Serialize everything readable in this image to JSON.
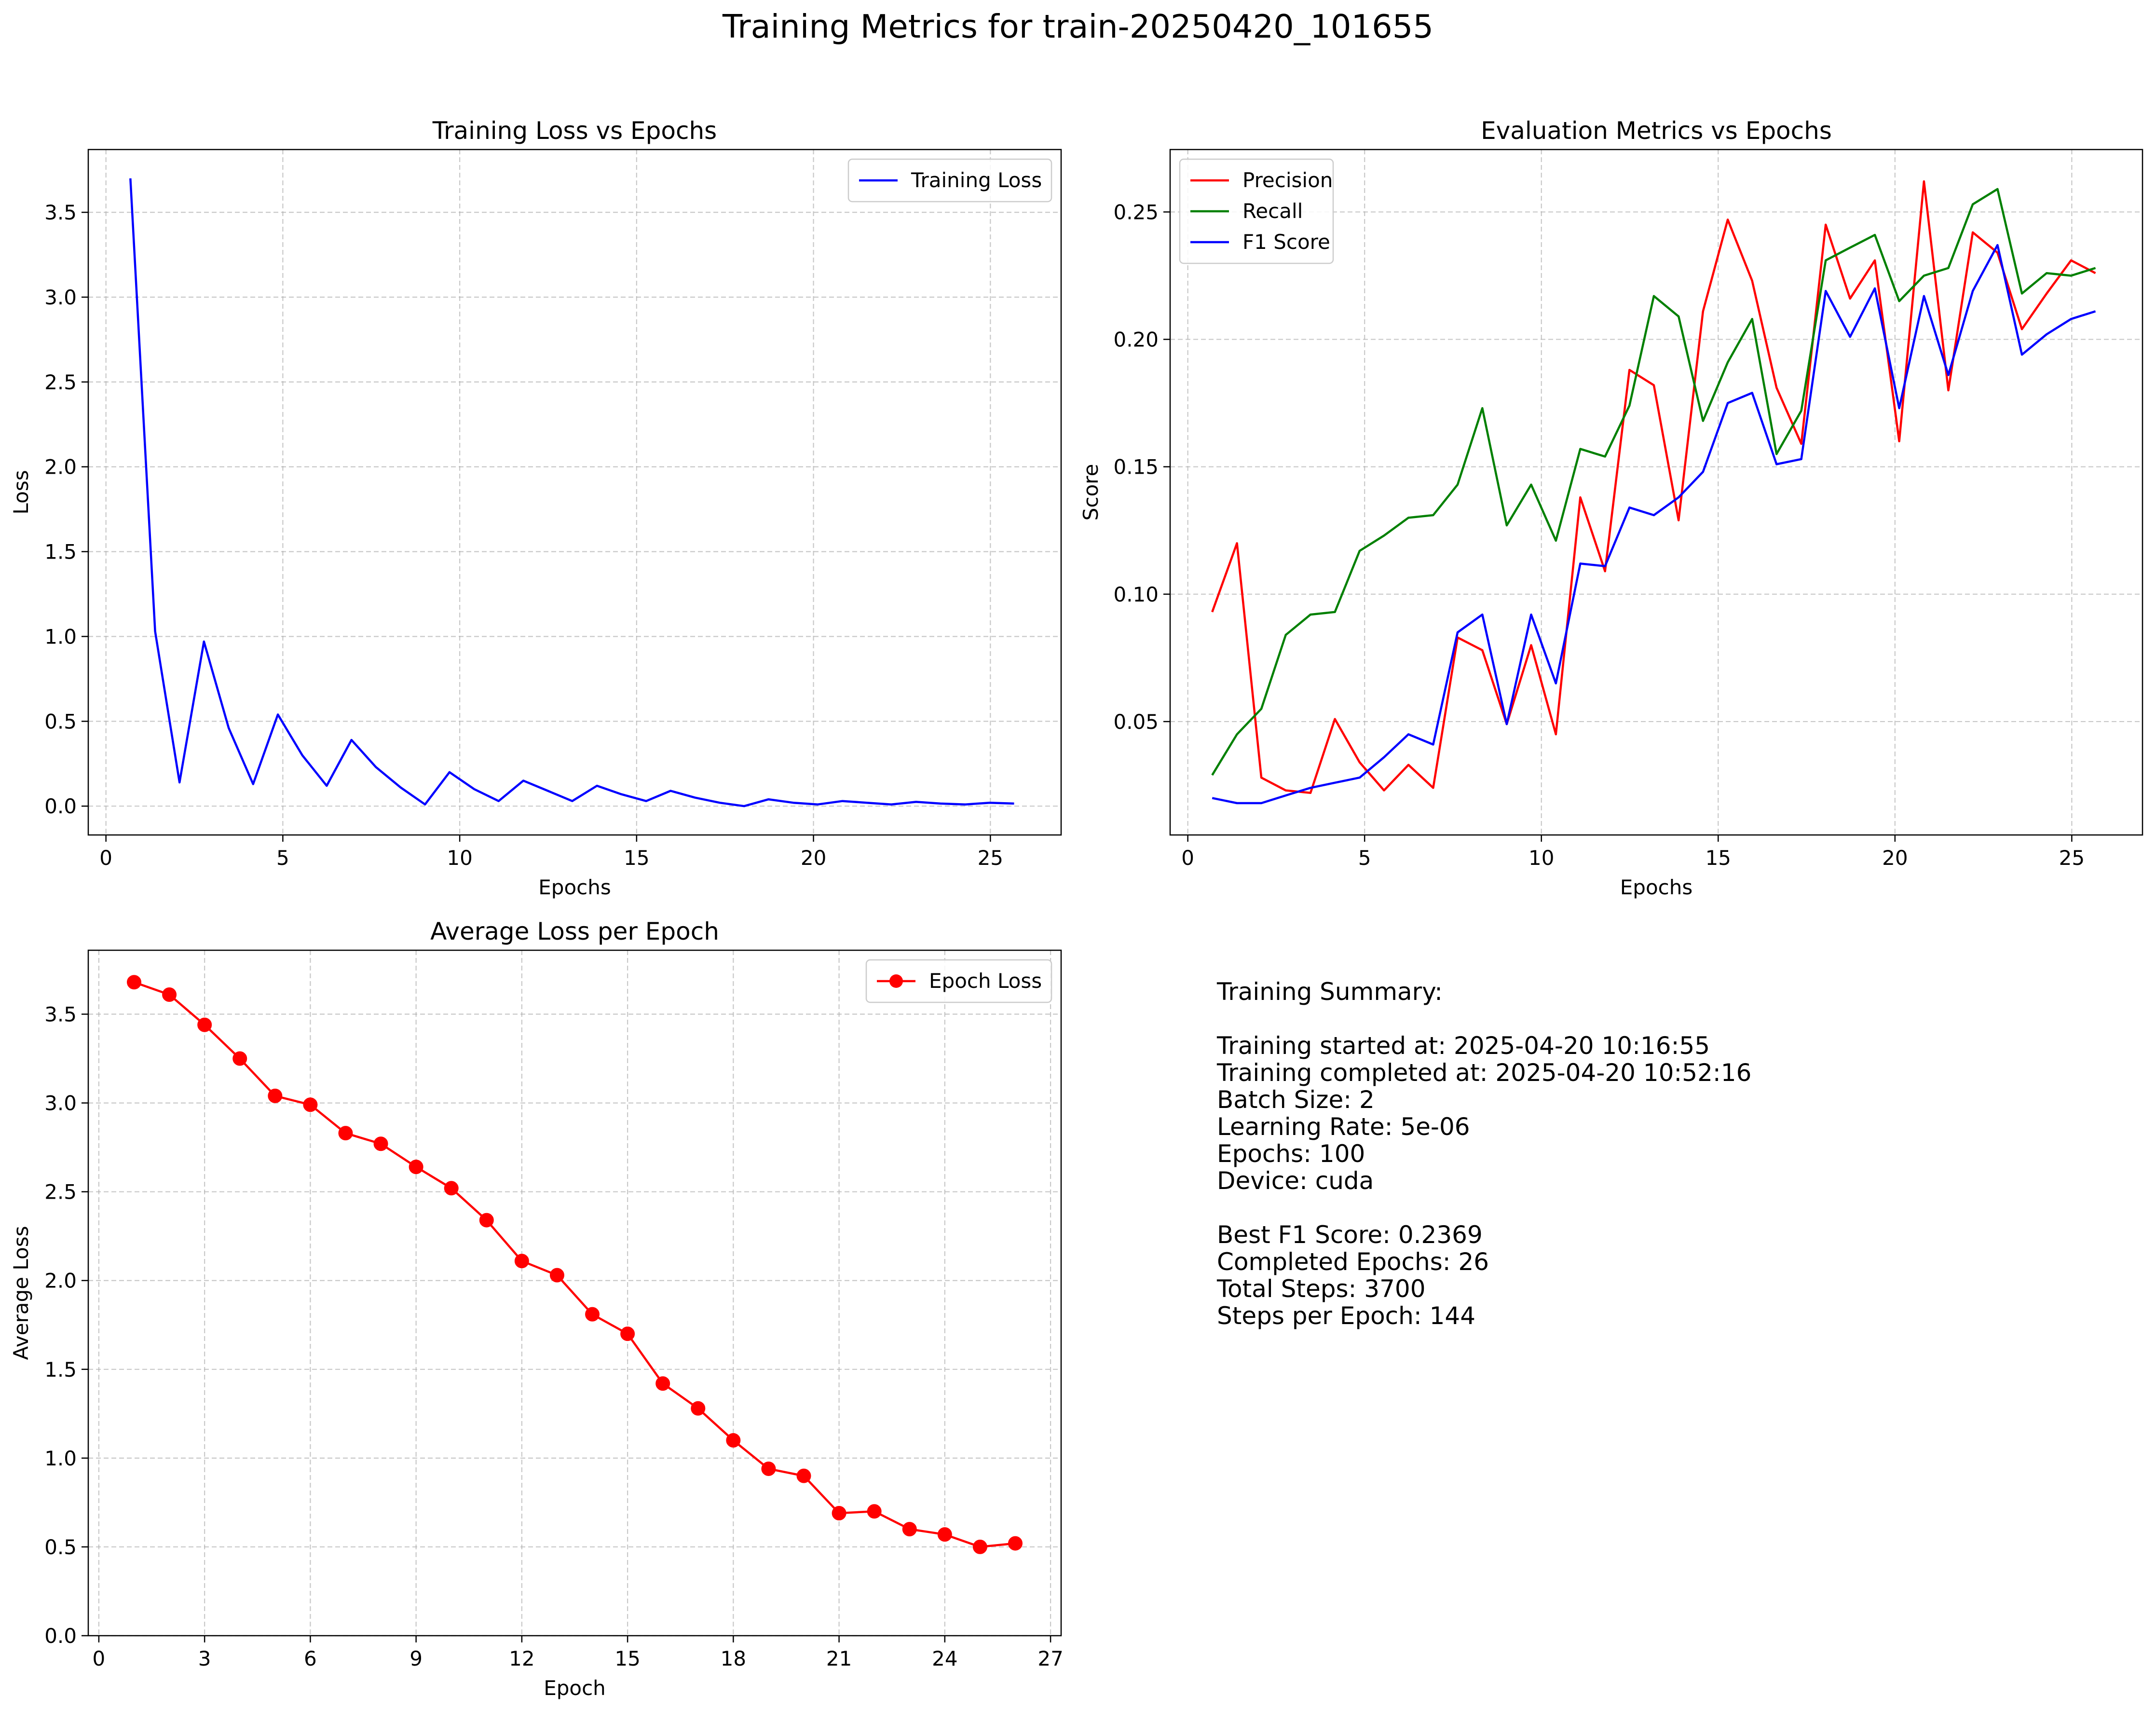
{
  "figure_title": "Training Metrics for train-20250420_101655",
  "summary": {
    "heading": "Training Summary:",
    "started": "Training started at: 2025-04-20 10:16:55",
    "completed": "Training completed at: 2025-04-20 10:52:16",
    "batch_size": "Batch Size: 2",
    "learning_rate": "Learning Rate: 5e-06",
    "epochs": "Epochs: 100",
    "device": "Device: cuda",
    "best_f1": "Best F1 Score: 0.2369",
    "completed_epochs": "Completed Epochs: 26",
    "total_steps": "Total Steps: 3700",
    "steps_per_epoch": "Steps per Epoch: 144"
  },
  "chart_data": [
    {
      "type": "line",
      "title": "Training Loss vs Epochs",
      "xlabel": "Epochs",
      "ylabel": "Loss",
      "xlim": [
        -0.5,
        27.0
      ],
      "ylim": [
        -0.17,
        3.87
      ],
      "xticks": [
        0,
        5,
        10,
        15,
        20,
        25
      ],
      "yticks": [
        0.0,
        0.5,
        1.0,
        1.5,
        2.0,
        2.5,
        3.0,
        3.5
      ],
      "ytick_labels": [
        "0.0",
        "0.5",
        "1.0",
        "1.5",
        "2.0",
        "2.5",
        "3.0",
        "3.5"
      ],
      "grid": true,
      "legend": "upper right",
      "series": [
        {
          "name": "Training Loss",
          "color": "#0000ff",
          "marker": false,
          "x": [
            0.69,
            1.39,
            2.08,
            2.77,
            3.47,
            4.16,
            4.86,
            5.55,
            6.24,
            6.94,
            7.63,
            8.33,
            9.02,
            9.71,
            10.41,
            11.1,
            11.8,
            12.49,
            13.18,
            13.88,
            14.57,
            15.27,
            15.96,
            16.65,
            17.35,
            18.04,
            18.73,
            19.43,
            20.12,
            20.82,
            21.51,
            22.2,
            22.9,
            23.59,
            24.29,
            24.98,
            25.67
          ],
          "y": [
            3.7,
            1.03,
            0.14,
            0.97,
            0.46,
            0.13,
            0.54,
            0.3,
            0.12,
            0.39,
            0.23,
            0.11,
            0.01,
            0.2,
            0.1,
            0.03,
            0.15,
            0.09,
            0.03,
            0.12,
            0.07,
            0.03,
            0.09,
            0.05,
            0.02,
            0.0,
            0.04,
            0.02,
            0.01,
            0.03,
            0.02,
            0.01,
            0.025,
            0.015,
            0.01,
            0.02,
            0.015
          ]
        }
      ]
    },
    {
      "type": "line",
      "title": "Evaluation Metrics vs Epochs",
      "xlabel": "Epochs",
      "ylabel": "Score",
      "xlim": [
        -0.5,
        27.0
      ],
      "ylim": [
        0.0055,
        0.2745
      ],
      "xticks": [
        0,
        5,
        10,
        15,
        20,
        25
      ],
      "yticks": [
        0.05,
        0.1,
        0.15,
        0.2,
        0.25
      ],
      "ytick_labels": [
        "0.05",
        "0.10",
        "0.15",
        "0.20",
        "0.25"
      ],
      "grid": true,
      "legend": "upper left",
      "series": [
        {
          "name": "Precision",
          "color": "#ff0000",
          "marker": false,
          "x": [
            0.69,
            1.39,
            2.08,
            2.77,
            3.47,
            4.16,
            4.86,
            5.55,
            6.24,
            6.94,
            7.63,
            8.33,
            9.02,
            9.71,
            10.41,
            11.1,
            11.8,
            12.49,
            13.18,
            13.88,
            14.57,
            15.27,
            15.96,
            16.65,
            17.35,
            18.04,
            18.73,
            19.43,
            20.12,
            20.82,
            21.51,
            22.2,
            22.9,
            23.59,
            24.29,
            24.98,
            25.67
          ],
          "y": [
            0.093,
            0.12,
            0.028,
            0.023,
            0.022,
            0.051,
            0.034,
            0.023,
            0.033,
            0.024,
            0.083,
            0.078,
            0.049,
            0.08,
            0.045,
            0.138,
            0.109,
            0.188,
            0.182,
            0.129,
            0.211,
            0.247,
            0.223,
            0.181,
            0.159,
            0.245,
            0.216,
            0.231,
            0.16,
            0.262,
            0.18,
            0.242,
            0.234,
            0.204,
            0.218,
            0.231,
            0.226
          ]
        },
        {
          "name": "Recall",
          "color": "#008000",
          "marker": false,
          "x": [
            0.69,
            1.39,
            2.08,
            2.77,
            3.47,
            4.16,
            4.86,
            5.55,
            6.24,
            6.94,
            7.63,
            8.33,
            9.02,
            9.71,
            10.41,
            11.1,
            11.8,
            12.49,
            13.18,
            13.88,
            14.57,
            15.27,
            15.96,
            16.65,
            17.35,
            18.04,
            18.73,
            19.43,
            20.12,
            20.82,
            21.51,
            22.2,
            22.9,
            23.59,
            24.29,
            24.98,
            25.67
          ],
          "y": [
            0.029,
            0.045,
            0.055,
            0.084,
            0.092,
            0.093,
            0.117,
            0.123,
            0.13,
            0.131,
            0.143,
            0.173,
            0.127,
            0.143,
            0.121,
            0.157,
            0.154,
            0.174,
            0.217,
            0.209,
            0.168,
            0.191,
            0.208,
            0.155,
            0.172,
            0.231,
            0.236,
            0.241,
            0.215,
            0.225,
            0.228,
            0.253,
            0.259,
            0.218,
            0.226,
            0.225,
            0.228
          ]
        },
        {
          "name": "F1 Score",
          "color": "#0000ff",
          "marker": false,
          "x": [
            0.69,
            1.39,
            2.08,
            2.77,
            3.47,
            4.16,
            4.86,
            5.55,
            6.24,
            6.94,
            7.63,
            8.33,
            9.02,
            9.71,
            10.41,
            11.1,
            11.8,
            12.49,
            13.18,
            13.88,
            14.57,
            15.27,
            15.96,
            16.65,
            17.35,
            18.04,
            18.73,
            19.43,
            20.12,
            20.82,
            21.51,
            22.2,
            22.9,
            23.59,
            24.29,
            24.98,
            25.67
          ],
          "y": [
            0.02,
            0.018,
            0.018,
            0.021,
            0.024,
            0.026,
            0.028,
            0.036,
            0.045,
            0.041,
            0.085,
            0.092,
            0.049,
            0.092,
            0.065,
            0.112,
            0.111,
            0.134,
            0.131,
            0.138,
            0.148,
            0.175,
            0.179,
            0.151,
            0.153,
            0.219,
            0.201,
            0.22,
            0.173,
            0.217,
            0.186,
            0.219,
            0.237,
            0.194,
            0.202,
            0.208,
            0.211
          ]
        }
      ]
    },
    {
      "type": "line",
      "title": "Average Loss per Epoch",
      "xlabel": "Epoch",
      "ylabel": "Average Loss",
      "xlim": [
        -0.3,
        27.3
      ],
      "ylim": [
        0.0,
        3.86
      ],
      "xticks": [
        0,
        3,
        6,
        9,
        12,
        15,
        18,
        21,
        24,
        27
      ],
      "yticks": [
        0.0,
        0.5,
        1.0,
        1.5,
        2.0,
        2.5,
        3.0,
        3.5
      ],
      "ytick_labels": [
        "0.0",
        "0.5",
        "1.0",
        "1.5",
        "2.0",
        "2.5",
        "3.0",
        "3.5"
      ],
      "grid": true,
      "legend": "upper right",
      "series": [
        {
          "name": "Epoch Loss",
          "color": "#ff0000",
          "marker": true,
          "x": [
            1,
            2,
            3,
            4,
            5,
            6,
            7,
            8,
            9,
            10,
            11,
            12,
            13,
            14,
            15,
            16,
            17,
            18,
            19,
            20,
            21,
            22,
            23,
            24,
            25,
            26
          ],
          "y": [
            3.68,
            3.61,
            3.44,
            3.25,
            3.04,
            2.99,
            2.83,
            2.77,
            2.64,
            2.52,
            2.34,
            2.11,
            2.03,
            1.81,
            1.7,
            1.42,
            1.28,
            1.1,
            0.94,
            0.9,
            0.69,
            0.7,
            0.6,
            0.57,
            0.5,
            0.52
          ]
        }
      ]
    }
  ]
}
